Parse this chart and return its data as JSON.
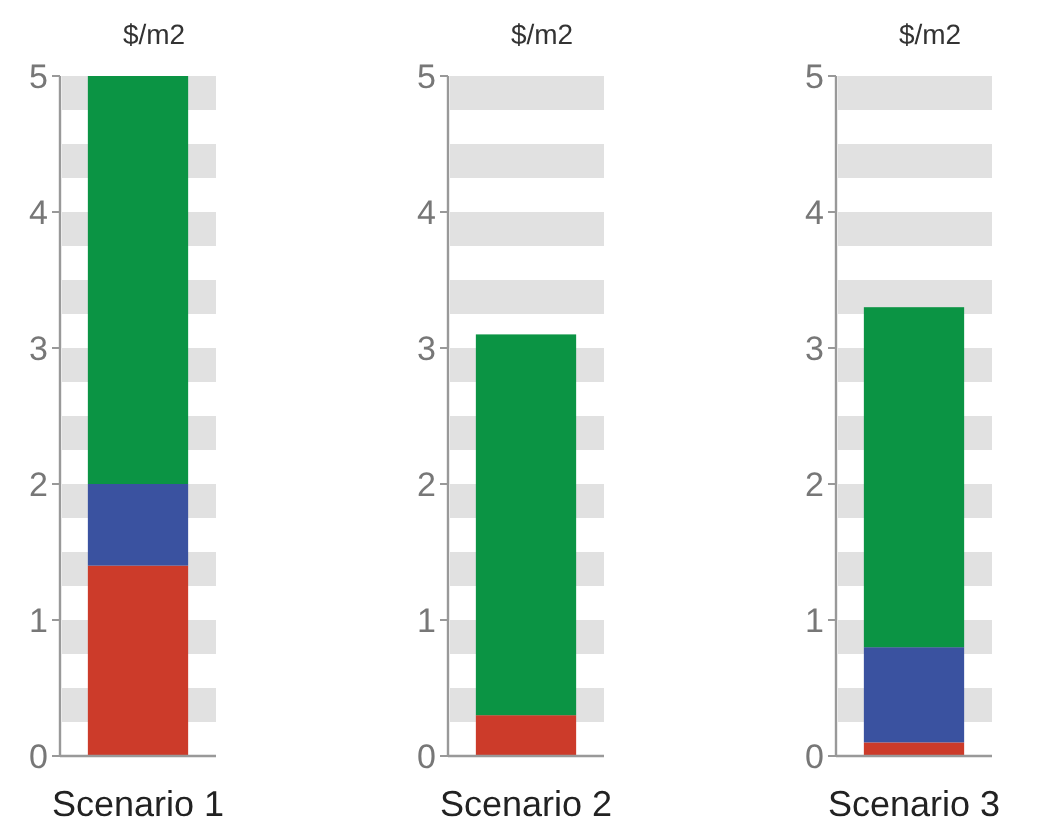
{
  "chart_data": [
    {
      "type": "bar",
      "stacked": true,
      "ylabel": "$/m2",
      "categories": [
        "Scenario 1"
      ],
      "ylim": [
        0,
        5
      ],
      "yticks": [
        0,
        1,
        2,
        3,
        4,
        5
      ],
      "bands": [
        {
          "axis": "y",
          "from": 4.75,
          "to": 5,
          "color": "#e1e1e1"
        },
        {
          "axis": "y",
          "from": 4.25,
          "to": 4.5,
          "color": "#e1e1e1"
        },
        {
          "axis": "y",
          "from": 3.75,
          "to": 4,
          "color": "#e1e1e1"
        },
        {
          "axis": "y",
          "from": 3.25,
          "to": 3.5,
          "color": "#e1e1e1"
        },
        {
          "axis": "y",
          "from": 2.75,
          "to": 3,
          "color": "#e1e1e1"
        },
        {
          "axis": "y",
          "from": 2.25,
          "to": 2.5,
          "color": "#e1e1e1"
        },
        {
          "axis": "y",
          "from": 1.75,
          "to": 2,
          "color": "#e1e1e1"
        },
        {
          "axis": "y",
          "from": 1.25,
          "to": 1.5,
          "color": "#e1e1e1"
        },
        {
          "axis": "y",
          "from": 0.75,
          "to": 1,
          "color": "#e1e1e1"
        },
        {
          "axis": "y",
          "from": 0.25,
          "to": 0.5,
          "color": "#e1e1e1"
        }
      ],
      "series": [
        {
          "color": "#cc3b2a",
          "values": [
            1.4
          ]
        },
        {
          "color": "#3a52a0",
          "values": [
            0.6
          ]
        },
        {
          "color": "#0b9444",
          "values": [
            3.0
          ]
        }
      ]
    },
    {
      "type": "bar",
      "stacked": true,
      "ylabel": "$/m2",
      "categories": [
        "Scenario 2"
      ],
      "ylim": [
        0,
        5
      ],
      "yticks": [
        0,
        1,
        2,
        3,
        4,
        5
      ],
      "bands": [
        {
          "axis": "y",
          "from": 4.75,
          "to": 5,
          "color": "#e1e1e1"
        },
        {
          "axis": "y",
          "from": 4.25,
          "to": 4.5,
          "color": "#e1e1e1"
        },
        {
          "axis": "y",
          "from": 3.75,
          "to": 4,
          "color": "#e1e1e1"
        },
        {
          "axis": "y",
          "from": 3.25,
          "to": 3.5,
          "color": "#e1e1e1"
        },
        {
          "axis": "y",
          "from": 2.75,
          "to": 3,
          "color": "#e1e1e1"
        },
        {
          "axis": "y",
          "from": 2.25,
          "to": 2.5,
          "color": "#e1e1e1"
        },
        {
          "axis": "y",
          "from": 1.75,
          "to": 2,
          "color": "#e1e1e1"
        },
        {
          "axis": "y",
          "from": 1.25,
          "to": 1.5,
          "color": "#e1e1e1"
        },
        {
          "axis": "y",
          "from": 0.75,
          "to": 1,
          "color": "#e1e1e1"
        },
        {
          "axis": "y",
          "from": 0.25,
          "to": 0.5,
          "color": "#e1e1e1"
        }
      ],
      "series": [
        {
          "color": "#cc3b2a",
          "values": [
            0.3
          ]
        },
        {
          "color": "#3a52a0",
          "values": [
            0
          ]
        },
        {
          "color": "#0b9444",
          "values": [
            2.8
          ]
        }
      ]
    },
    {
      "type": "bar",
      "stacked": true,
      "ylabel": "$/m2",
      "categories": [
        "Scenario 3"
      ],
      "ylim": [
        0,
        5
      ],
      "yticks": [
        0,
        1,
        2,
        3,
        4,
        5
      ],
      "bands": [
        {
          "axis": "y",
          "from": 4.75,
          "to": 5,
          "color": "#e1e1e1"
        },
        {
          "axis": "y",
          "from": 4.25,
          "to": 4.5,
          "color": "#e1e1e1"
        },
        {
          "axis": "y",
          "from": 3.75,
          "to": 4,
          "color": "#e1e1e1"
        },
        {
          "axis": "y",
          "from": 3.25,
          "to": 3.5,
          "color": "#e1e1e1"
        },
        {
          "axis": "y",
          "from": 2.75,
          "to": 3,
          "color": "#e1e1e1"
        },
        {
          "axis": "y",
          "from": 2.25,
          "to": 2.5,
          "color": "#e1e1e1"
        },
        {
          "axis": "y",
          "from": 1.75,
          "to": 2,
          "color": "#e1e1e1"
        },
        {
          "axis": "y",
          "from": 1.25,
          "to": 1.5,
          "color": "#e1e1e1"
        },
        {
          "axis": "y",
          "from": 0.75,
          "to": 1,
          "color": "#e1e1e1"
        },
        {
          "axis": "y",
          "from": 0.25,
          "to": 0.5,
          "color": "#e1e1e1"
        }
      ],
      "series": [
        {
          "color": "#cc3b2a",
          "values": [
            0.1
          ]
        },
        {
          "color": "#3a52a0",
          "values": [
            0.7
          ]
        },
        {
          "color": "#0b9444",
          "values": [
            2.5
          ]
        }
      ]
    }
  ]
}
